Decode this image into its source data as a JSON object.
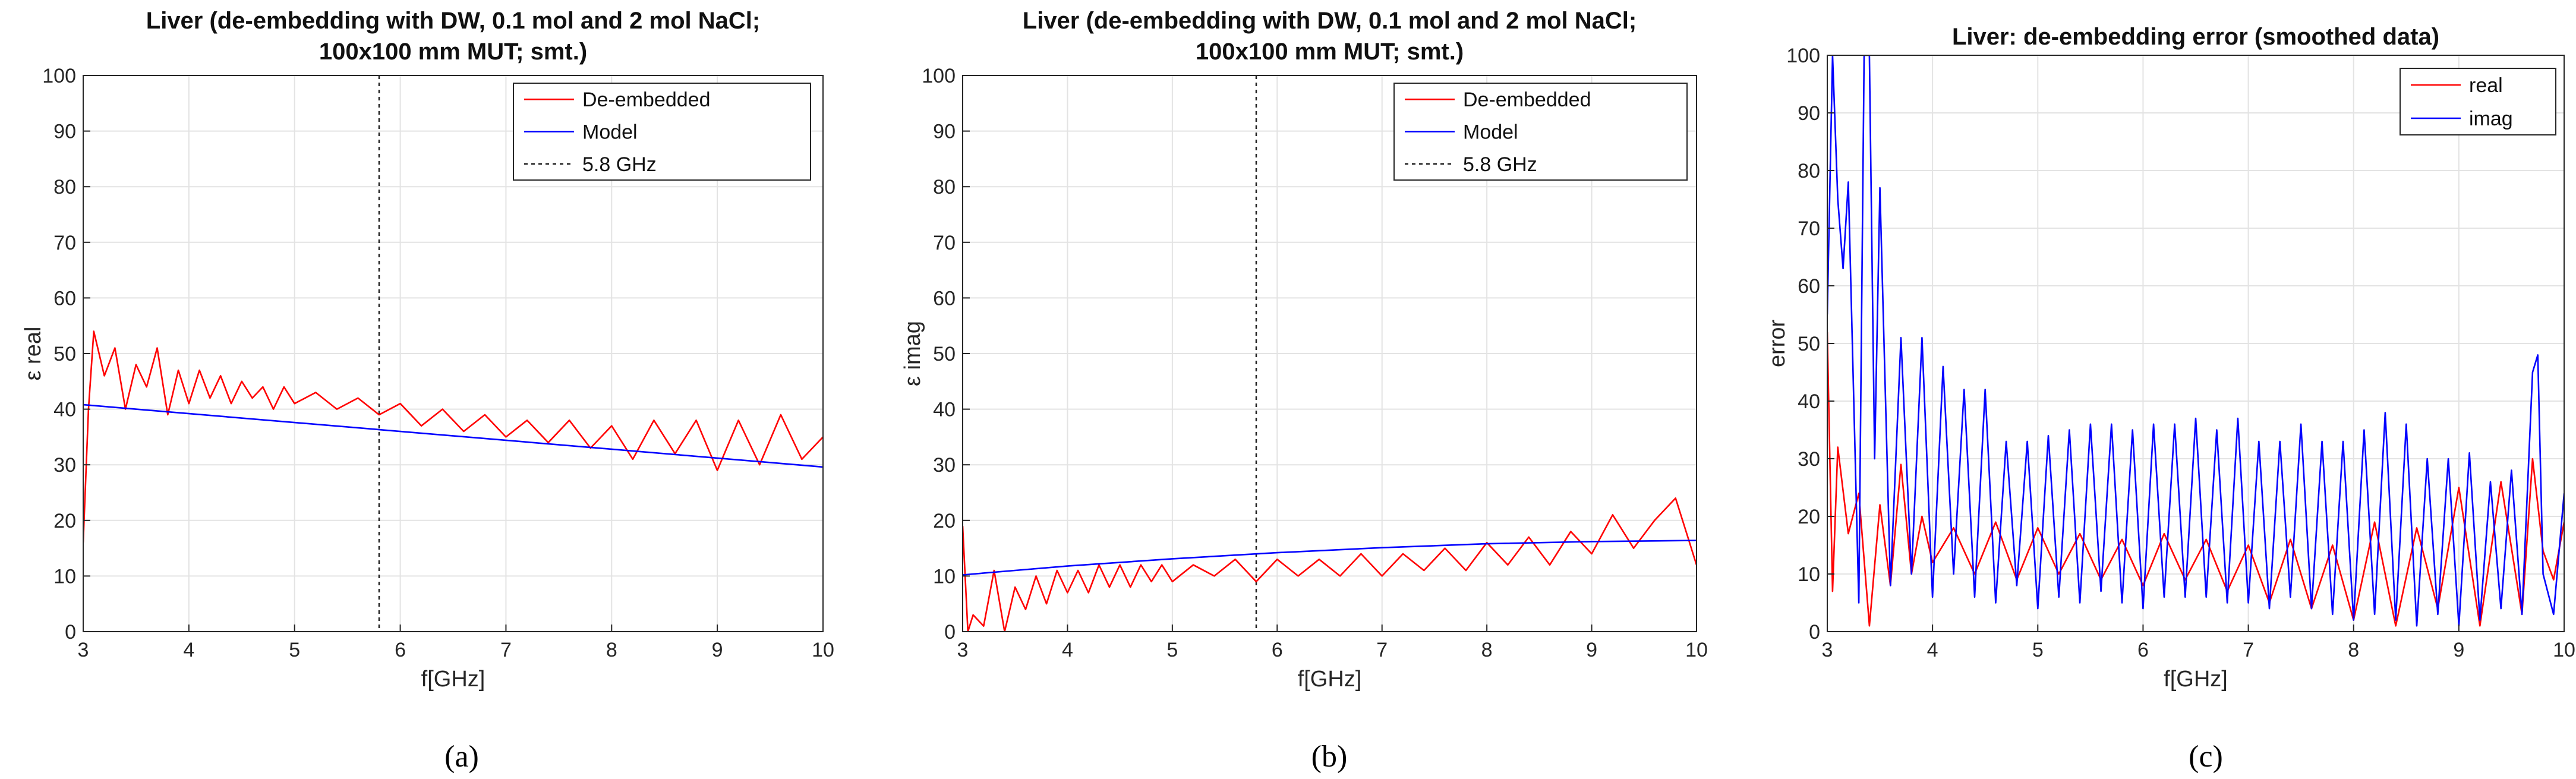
{
  "chart_data": [
    {
      "type": "line",
      "id": "a",
      "title": [
        "Liver (de-embedding with DW, 0.1 mol and 2 mol NaCl;",
        "100x100 mm MUT; smt.)"
      ],
      "xlabel": "f[GHz]",
      "ylabel": "ε real",
      "xlim": [
        3,
        10
      ],
      "ylim": [
        0,
        100
      ],
      "xticks": [
        "3",
        "4",
        "5",
        "6",
        "7",
        "8",
        "9",
        "10"
      ],
      "yticks": [
        "0",
        "10",
        "20",
        "30",
        "40",
        "50",
        "60",
        "70",
        "80",
        "90",
        "100"
      ],
      "grid": true,
      "legend_position": "top-right",
      "vline": {
        "x": 5.8,
        "label": "5.8 GHz"
      },
      "series": [
        {
          "name": "De-embedded",
          "color": "#ff0000",
          "x": [
            3.0,
            3.05,
            3.1,
            3.2,
            3.3,
            3.4,
            3.5,
            3.6,
            3.7,
            3.8,
            3.9,
            4.0,
            4.1,
            4.2,
            4.3,
            4.4,
            4.5,
            4.6,
            4.7,
            4.8,
            4.9,
            5.0,
            5.2,
            5.4,
            5.6,
            5.8,
            6.0,
            6.2,
            6.4,
            6.6,
            6.8,
            7.0,
            7.2,
            7.4,
            7.6,
            7.8,
            8.0,
            8.2,
            8.4,
            8.6,
            8.8,
            9.0,
            9.2,
            9.4,
            9.6,
            9.8,
            10.0
          ],
          "y": [
            16,
            40,
            54,
            46,
            51,
            40,
            48,
            44,
            51,
            39,
            47,
            41,
            47,
            42,
            46,
            41,
            45,
            42,
            44,
            40,
            44,
            41,
            43,
            40,
            42,
            39,
            41,
            37,
            40,
            36,
            39,
            35,
            38,
            34,
            38,
            33,
            37,
            31,
            38,
            32,
            38,
            29,
            38,
            30,
            39,
            31,
            35
          ]
        },
        {
          "name": "Model",
          "color": "#0000ff",
          "x": [
            3.0,
            10.0
          ],
          "y": [
            40.8,
            29.6
          ]
        }
      ],
      "caption": "(a)"
    },
    {
      "type": "line",
      "id": "b",
      "title": [
        "Liver (de-embedding with DW, 0.1 mol and 2 mol NaCl;",
        "100x100 mm MUT; smt.)"
      ],
      "xlabel": "f[GHz]",
      "ylabel": "ε imag",
      "xlim": [
        3,
        10
      ],
      "ylim": [
        0,
        100
      ],
      "xticks": [
        "3",
        "4",
        "5",
        "6",
        "7",
        "8",
        "9",
        "10"
      ],
      "yticks": [
        "0",
        "10",
        "20",
        "30",
        "40",
        "50",
        "60",
        "70",
        "80",
        "90",
        "100"
      ],
      "grid": true,
      "legend_position": "top-right",
      "vline": {
        "x": 5.8,
        "label": "5.8 GHz"
      },
      "series": [
        {
          "name": "De-embedded",
          "color": "#ff0000",
          "x": [
            3.0,
            3.05,
            3.1,
            3.2,
            3.3,
            3.4,
            3.5,
            3.6,
            3.7,
            3.8,
            3.9,
            4.0,
            4.1,
            4.2,
            4.3,
            4.4,
            4.5,
            4.6,
            4.7,
            4.8,
            4.9,
            5.0,
            5.2,
            5.4,
            5.6,
            5.8,
            6.0,
            6.2,
            6.4,
            6.6,
            6.8,
            7.0,
            7.2,
            7.4,
            7.6,
            7.8,
            8.0,
            8.2,
            8.4,
            8.6,
            8.8,
            9.0,
            9.2,
            9.4,
            9.6,
            9.8,
            9.9,
            10.0
          ],
          "y": [
            19,
            0,
            3,
            1,
            11,
            0,
            8,
            4,
            10,
            5,
            11,
            7,
            11,
            7,
            12,
            8,
            12,
            8,
            12,
            9,
            12,
            9,
            12,
            10,
            13,
            9,
            13,
            10,
            13,
            10,
            14,
            10,
            14,
            11,
            15,
            11,
            16,
            12,
            17,
            12,
            18,
            14,
            21,
            15,
            20,
            24,
            18,
            12
          ]
        },
        {
          "name": "Model",
          "color": "#0000ff",
          "x": [
            3.0,
            3.5,
            4.0,
            5.0,
            6.0,
            7.0,
            8.0,
            9.0,
            10.0
          ],
          "y": [
            10.2,
            11.0,
            11.8,
            13.1,
            14.2,
            15.1,
            15.8,
            16.2,
            16.4
          ]
        }
      ],
      "caption": "(b)"
    },
    {
      "type": "line",
      "id": "c",
      "title": [
        "Liver: de-embedding error (smoothed data)"
      ],
      "xlabel": "f[GHz]",
      "ylabel": "error",
      "xlim": [
        3,
        10
      ],
      "ylim": [
        0,
        100
      ],
      "xticks": [
        "3",
        "4",
        "5",
        "6",
        "7",
        "8",
        "9",
        "10"
      ],
      "yticks": [
        "0",
        "10",
        "20",
        "30",
        "40",
        "50",
        "60",
        "70",
        "80",
        "90",
        "100"
      ],
      "grid": true,
      "legend_position": "top-right",
      "series": [
        {
          "name": "real",
          "color": "#ff0000",
          "x": [
            3.0,
            3.05,
            3.1,
            3.2,
            3.3,
            3.4,
            3.5,
            3.6,
            3.7,
            3.8,
            3.9,
            4.0,
            4.2,
            4.4,
            4.6,
            4.8,
            5.0,
            5.2,
            5.4,
            5.6,
            5.8,
            6.0,
            6.2,
            6.4,
            6.6,
            6.8,
            7.0,
            7.2,
            7.4,
            7.6,
            7.8,
            8.0,
            8.2,
            8.4,
            8.6,
            8.8,
            9.0,
            9.2,
            9.4,
            9.6,
            9.7,
            9.8,
            9.9,
            10.0
          ],
          "y": [
            52,
            7,
            32,
            17,
            24,
            1,
            22,
            8,
            29,
            10,
            20,
            12,
            18,
            10,
            19,
            9,
            18,
            10,
            17,
            9,
            16,
            8,
            17,
            9,
            16,
            7,
            15,
            5,
            16,
            4,
            15,
            2,
            19,
            1,
            18,
            4,
            25,
            1,
            26,
            3,
            30,
            14,
            9,
            19
          ]
        },
        {
          "name": "imag",
          "color": "#0000ff",
          "x": [
            3.0,
            3.05,
            3.1,
            3.15,
            3.2,
            3.3,
            3.35,
            3.4,
            3.45,
            3.5,
            3.6,
            3.7,
            3.8,
            3.9,
            4.0,
            4.1,
            4.2,
            4.3,
            4.4,
            4.5,
            4.6,
            4.7,
            4.8,
            4.9,
            5.0,
            5.1,
            5.2,
            5.3,
            5.4,
            5.5,
            5.6,
            5.7,
            5.8,
            5.9,
            6.0,
            6.1,
            6.2,
            6.3,
            6.4,
            6.5,
            6.6,
            6.7,
            6.8,
            6.9,
            7.0,
            7.1,
            7.2,
            7.3,
            7.4,
            7.5,
            7.6,
            7.7,
            7.8,
            7.9,
            8.0,
            8.1,
            8.2,
            8.3,
            8.4,
            8.5,
            8.6,
            8.7,
            8.8,
            8.9,
            9.0,
            9.1,
            9.2,
            9.3,
            9.4,
            9.5,
            9.6,
            9.7,
            9.75,
            9.8,
            9.9,
            10.0
          ],
          "y": [
            55,
            100,
            75,
            63,
            78,
            5,
            100,
            100,
            30,
            77,
            8,
            51,
            10,
            51,
            6,
            46,
            10,
            42,
            6,
            42,
            5,
            33,
            8,
            33,
            4,
            34,
            6,
            35,
            5,
            36,
            7,
            36,
            5,
            35,
            4,
            36,
            6,
            36,
            6,
            37,
            6,
            35,
            5,
            37,
            5,
            33,
            4,
            33,
            6,
            36,
            4,
            33,
            3,
            33,
            2,
            35,
            3,
            38,
            2,
            36,
            1,
            30,
            3,
            30,
            1,
            31,
            2,
            26,
            4,
            28,
            3,
            45,
            48,
            10,
            3,
            24
          ]
        }
      ],
      "caption": "(c)"
    }
  ]
}
